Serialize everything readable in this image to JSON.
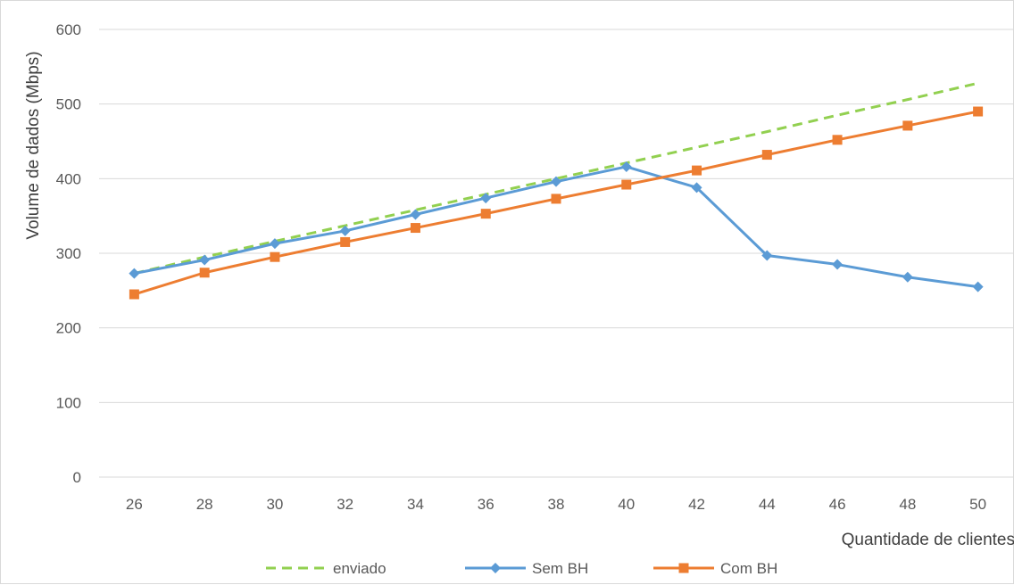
{
  "chart_data": {
    "type": "line",
    "title": "",
    "xlabel": "Quantidade de clientes",
    "ylabel": "Volume de dados (Mbps)",
    "ylim": [
      0,
      600
    ],
    "yticks": [
      0,
      100,
      200,
      300,
      400,
      500,
      600
    ],
    "grid": true,
    "legend_position": "bottom",
    "categories": [
      "26",
      "28",
      "30",
      "32",
      "34",
      "36",
      "38",
      "40",
      "42",
      "44",
      "46",
      "48",
      "50"
    ],
    "series": [
      {
        "name": "enviado",
        "color": "#92d050",
        "style": "dashed",
        "marker": "none",
        "values": [
          273,
          295,
          316,
          337,
          358,
          379,
          400,
          421,
          442,
          463,
          485,
          506,
          528
        ]
      },
      {
        "name": "Sem BH",
        "color": "#5b9bd5",
        "style": "solid",
        "marker": "diamond",
        "values": [
          273,
          291,
          313,
          330,
          352,
          374,
          396,
          416,
          388,
          297,
          285,
          268,
          255
        ]
      },
      {
        "name": "Com BH",
        "color": "#ed7d31",
        "style": "solid",
        "marker": "square",
        "values": [
          245,
          274,
          295,
          315,
          334,
          353,
          373,
          392,
          411,
          432,
          452,
          471,
          490
        ]
      }
    ]
  }
}
